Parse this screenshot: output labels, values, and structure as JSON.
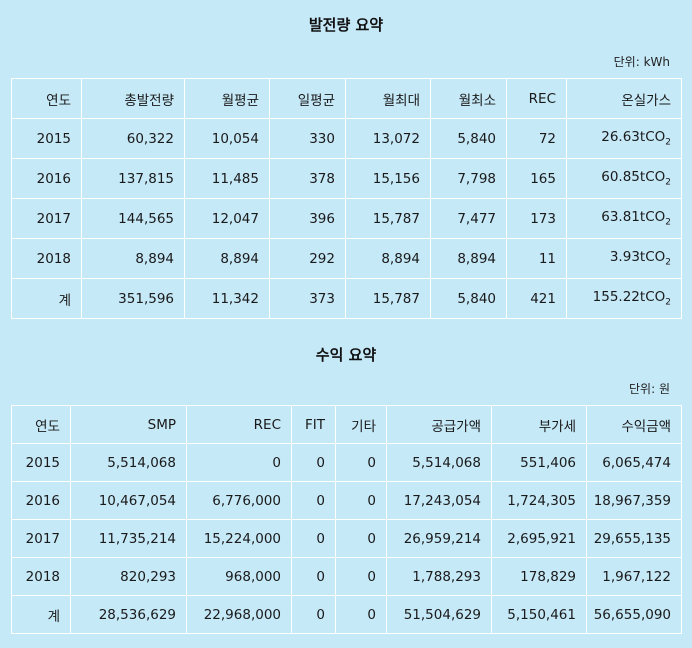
{
  "generation": {
    "title": "발전량 요약",
    "unit": "단위: kWh",
    "headers": [
      "연도",
      "총발전량",
      "월평균",
      "일평균",
      "월최대",
      "월최소",
      "REC",
      "온실가스"
    ],
    "co2_unit_main": "tCO",
    "co2_unit_sub": "2",
    "rows": [
      {
        "year": "2015",
        "total": "60,322",
        "monthly_avg": "10,054",
        "daily_avg": "330",
        "monthly_max": "13,072",
        "monthly_min": "5,840",
        "rec": "72",
        "ghg": "26.63"
      },
      {
        "year": "2016",
        "total": "137,815",
        "monthly_avg": "11,485",
        "daily_avg": "378",
        "monthly_max": "15,156",
        "monthly_min": "7,798",
        "rec": "165",
        "ghg": "60.85"
      },
      {
        "year": "2017",
        "total": "144,565",
        "monthly_avg": "12,047",
        "daily_avg": "396",
        "monthly_max": "15,787",
        "monthly_min": "7,477",
        "rec": "173",
        "ghg": "63.81"
      },
      {
        "year": "2018",
        "total": "8,894",
        "monthly_avg": "8,894",
        "daily_avg": "292",
        "monthly_max": "8,894",
        "monthly_min": "8,894",
        "rec": "11",
        "ghg": "3.93"
      },
      {
        "year": "계",
        "total": "351,596",
        "monthly_avg": "11,342",
        "daily_avg": "373",
        "monthly_max": "15,787",
        "monthly_min": "5,840",
        "rec": "421",
        "ghg": "155.22"
      }
    ]
  },
  "revenue": {
    "title": "수익 요약",
    "unit": "단위: 원",
    "headers": [
      "연도",
      "SMP",
      "REC",
      "FIT",
      "기타",
      "공급가액",
      "부가세",
      "수익금액"
    ],
    "rows": [
      {
        "year": "2015",
        "smp": "5,514,068",
        "rec": "0",
        "fit": "0",
        "etc": "0",
        "supply": "5,514,068",
        "vat": "551,406",
        "total": "6,065,474"
      },
      {
        "year": "2016",
        "smp": "10,467,054",
        "rec": "6,776,000",
        "fit": "0",
        "etc": "0",
        "supply": "17,243,054",
        "vat": "1,724,305",
        "total": "18,967,359"
      },
      {
        "year": "2017",
        "smp": "11,735,214",
        "rec": "15,224,000",
        "fit": "0",
        "etc": "0",
        "supply": "26,959,214",
        "vat": "2,695,921",
        "total": "29,655,135"
      },
      {
        "year": "2018",
        "smp": "820,293",
        "rec": "968,000",
        "fit": "0",
        "etc": "0",
        "supply": "1,788,293",
        "vat": "178,829",
        "total": "1,967,122"
      },
      {
        "year": "계",
        "smp": "28,536,629",
        "rec": "22,968,000",
        "fit": "0",
        "etc": "0",
        "supply": "51,504,629",
        "vat": "5,150,461",
        "total": "56,655,090"
      }
    ]
  }
}
